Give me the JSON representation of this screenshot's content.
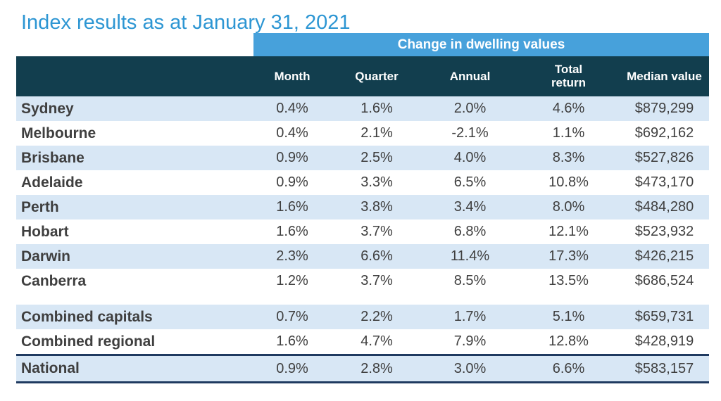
{
  "page": {
    "title": "Index results as at January 31, 2021"
  },
  "colors": {
    "title_text": "#2d96d3",
    "band_background": "#47a1db",
    "header_background": "#123e4e",
    "header_text": "#ffffff",
    "row_alternate_background": "#d8e7f5",
    "row_background": "#ffffff",
    "body_text": "#3f3f3f",
    "national_rule": "#1f3a60"
  },
  "chart_data": {
    "type": "table",
    "title": "Index results as at January 31, 2021",
    "band_header": "Change in dwelling values",
    "columns": [
      "Month",
      "Quarter",
      "Annual",
      "Total return",
      "Median value"
    ],
    "region_column_label": "",
    "rows": [
      {
        "region": "Sydney",
        "group": "capital",
        "values": [
          "0.4%",
          "1.6%",
          "2.0%",
          "4.6%",
          "$879,299"
        ]
      },
      {
        "region": "Melbourne",
        "group": "capital",
        "values": [
          "0.4%",
          "2.1%",
          "-2.1%",
          "1.1%",
          "$692,162"
        ]
      },
      {
        "region": "Brisbane",
        "group": "capital",
        "values": [
          "0.9%",
          "2.5%",
          "4.0%",
          "8.3%",
          "$527,826"
        ]
      },
      {
        "region": "Adelaide",
        "group": "capital",
        "values": [
          "0.9%",
          "3.3%",
          "6.5%",
          "10.8%",
          "$473,170"
        ]
      },
      {
        "region": "Perth",
        "group": "capital",
        "values": [
          "1.6%",
          "3.8%",
          "3.4%",
          "8.0%",
          "$484,280"
        ]
      },
      {
        "region": "Hobart",
        "group": "capital",
        "values": [
          "1.6%",
          "3.7%",
          "6.8%",
          "12.1%",
          "$523,932"
        ]
      },
      {
        "region": "Darwin",
        "group": "capital",
        "values": [
          "2.3%",
          "6.6%",
          "11.4%",
          "17.3%",
          "$426,215"
        ]
      },
      {
        "region": "Canberra",
        "group": "capital",
        "values": [
          "1.2%",
          "3.7%",
          "8.5%",
          "13.5%",
          "$686,524"
        ]
      },
      {
        "region": "Combined capitals",
        "group": "combined",
        "values": [
          "0.7%",
          "2.2%",
          "1.7%",
          "5.1%",
          "$659,731"
        ]
      },
      {
        "region": "Combined regional",
        "group": "combined",
        "values": [
          "1.6%",
          "4.7%",
          "7.9%",
          "12.8%",
          "$428,919"
        ]
      },
      {
        "region": "National",
        "group": "national",
        "values": [
          "0.9%",
          "2.8%",
          "3.0%",
          "6.6%",
          "$583,157"
        ]
      }
    ]
  }
}
